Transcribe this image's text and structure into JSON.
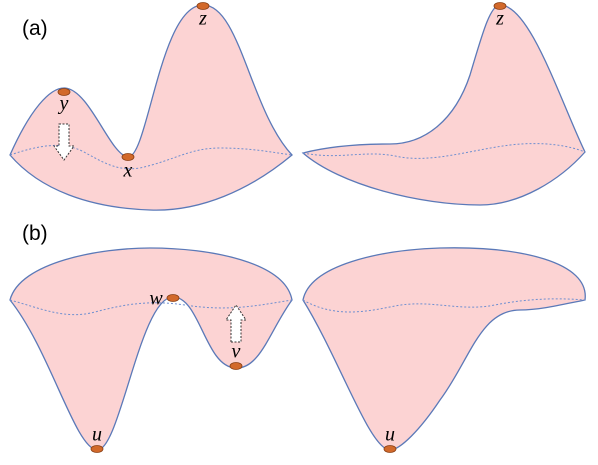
{
  "panels": [
    {
      "label": "(a)",
      "left": {
        "points": [
          "y",
          "x",
          "z"
        ]
      },
      "right": {
        "points": [
          "z"
        ]
      }
    },
    {
      "label": "(b)",
      "left": {
        "points": [
          "w",
          "v",
          "u"
        ]
      },
      "right": {
        "points": [
          "u"
        ]
      }
    }
  ]
}
